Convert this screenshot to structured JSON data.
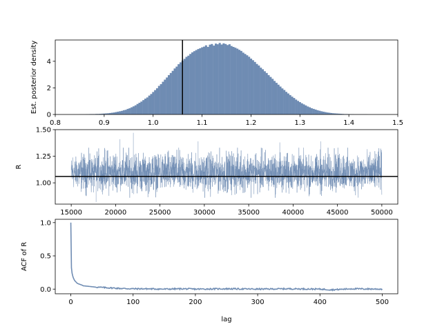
{
  "chart_data": [
    {
      "type": "histogram",
      "ylabel": "Est. posterior density",
      "xlabel": "",
      "xlim": [
        0.8,
        1.5
      ],
      "ylim": [
        0,
        5.6
      ],
      "xticks": [
        "0.8",
        "0.9",
        "1.0",
        "1.1",
        "1.2",
        "1.3",
        "1.4",
        "1.5"
      ],
      "yticks": [
        "0",
        "2",
        "4"
      ],
      "bar_color": "#6f8cb3",
      "bins": {
        "start": 0.85,
        "width": 0.004,
        "density": [
          0.01,
          0.01,
          0.01,
          0.02,
          0.02,
          0.03,
          0.03,
          0.03,
          0.04,
          0.04,
          0.05,
          0.06,
          0.07,
          0.08,
          0.09,
          0.11,
          0.13,
          0.15,
          0.18,
          0.21,
          0.24,
          0.27,
          0.32,
          0.35,
          0.42,
          0.47,
          0.54,
          0.61,
          0.69,
          0.79,
          0.88,
          0.97,
          1.08,
          1.19,
          1.28,
          1.42,
          1.54,
          1.69,
          1.83,
          1.97,
          2.15,
          2.28,
          2.46,
          2.62,
          2.78,
          2.96,
          3.12,
          3.28,
          3.46,
          3.6,
          3.78,
          3.92,
          4.05,
          4.18,
          4.33,
          4.42,
          4.55,
          4.67,
          4.76,
          4.84,
          4.92,
          4.98,
          5.05,
          5.1,
          5.2,
          5.08,
          5.25,
          5.3,
          5.18,
          5.33,
          5.28,
          5.38,
          5.26,
          5.35,
          5.3,
          5.22,
          5.28,
          5.15,
          5.08,
          5.02,
          4.95,
          4.86,
          4.78,
          4.65,
          4.55,
          4.45,
          4.34,
          4.2,
          4.08,
          3.95,
          3.8,
          3.68,
          3.52,
          3.4,
          3.25,
          3.12,
          2.96,
          2.82,
          2.68,
          2.52,
          2.38,
          2.24,
          2.1,
          1.96,
          1.84,
          1.7,
          1.58,
          1.46,
          1.34,
          1.24,
          1.12,
          1.02,
          0.93,
          0.84,
          0.76,
          0.68,
          0.6,
          0.54,
          0.47,
          0.42,
          0.37,
          0.32,
          0.28,
          0.24,
          0.21,
          0.18,
          0.15,
          0.13,
          0.11,
          0.09,
          0.08,
          0.07,
          0.06,
          0.05,
          0.04,
          0.03,
          0.03,
          0.02,
          0.02,
          0.02,
          0.01,
          0.01,
          0.01,
          0.01,
          0.01,
          0.01,
          0.01
        ]
      },
      "vline": 1.06
    },
    {
      "type": "line",
      "ylabel": "R",
      "xlabel": "",
      "xlim": [
        13200,
        51800
      ],
      "ylim": [
        0.8,
        1.5
      ],
      "xticks": [
        "15000",
        "20000",
        "25000",
        "30000",
        "35000",
        "40000",
        "45000",
        "50000"
      ],
      "yticks": [
        "1.00",
        "1.25",
        "1.50"
      ],
      "series": [
        {
          "x_start": 15000,
          "x_end": 50000,
          "mean": 1.06,
          "band_low": 0.88,
          "band_high": 1.3,
          "spikes": [
            [
              22000,
              1.47
            ],
            [
              20500,
              1.41
            ],
            [
              29300,
              1.39
            ],
            [
              43100,
              1.39
            ],
            [
              38500,
              1.38
            ],
            [
              17800,
              0.82
            ]
          ]
        }
      ],
      "line_color": "#6f8cb3",
      "hline": 1.06
    },
    {
      "type": "line",
      "ylabel": "ACF of R",
      "xlabel": "lag",
      "xlim": [
        -25,
        525
      ],
      "ylim": [
        -0.07,
        1.05
      ],
      "xticks": [
        "0",
        "100",
        "200",
        "300",
        "400",
        "500"
      ],
      "yticks": [
        "0.0",
        "0.5",
        "1.0"
      ],
      "series": [
        {
          "x": [
            0,
            1,
            2,
            3,
            4,
            5,
            6,
            8,
            10,
            12,
            15,
            18,
            20,
            25,
            30,
            35,
            40,
            50,
            60,
            70,
            80,
            100,
            120,
            150,
            180,
            200,
            250,
            300,
            350,
            400,
            420,
            450,
            500
          ],
          "y": [
            1.0,
            0.32,
            0.24,
            0.2,
            0.17,
            0.15,
            0.13,
            0.11,
            0.09,
            0.08,
            0.07,
            0.06,
            0.05,
            0.045,
            0.04,
            0.035,
            0.03,
            0.025,
            0.02,
            0.015,
            0.01,
            0.005,
            0.005,
            0.0,
            0.005,
            0.0,
            0.005,
            0.0,
            0.005,
            0.0,
            -0.01,
            0.005,
            0.0
          ]
        }
      ],
      "line_color": "#6f8cb3"
    }
  ]
}
